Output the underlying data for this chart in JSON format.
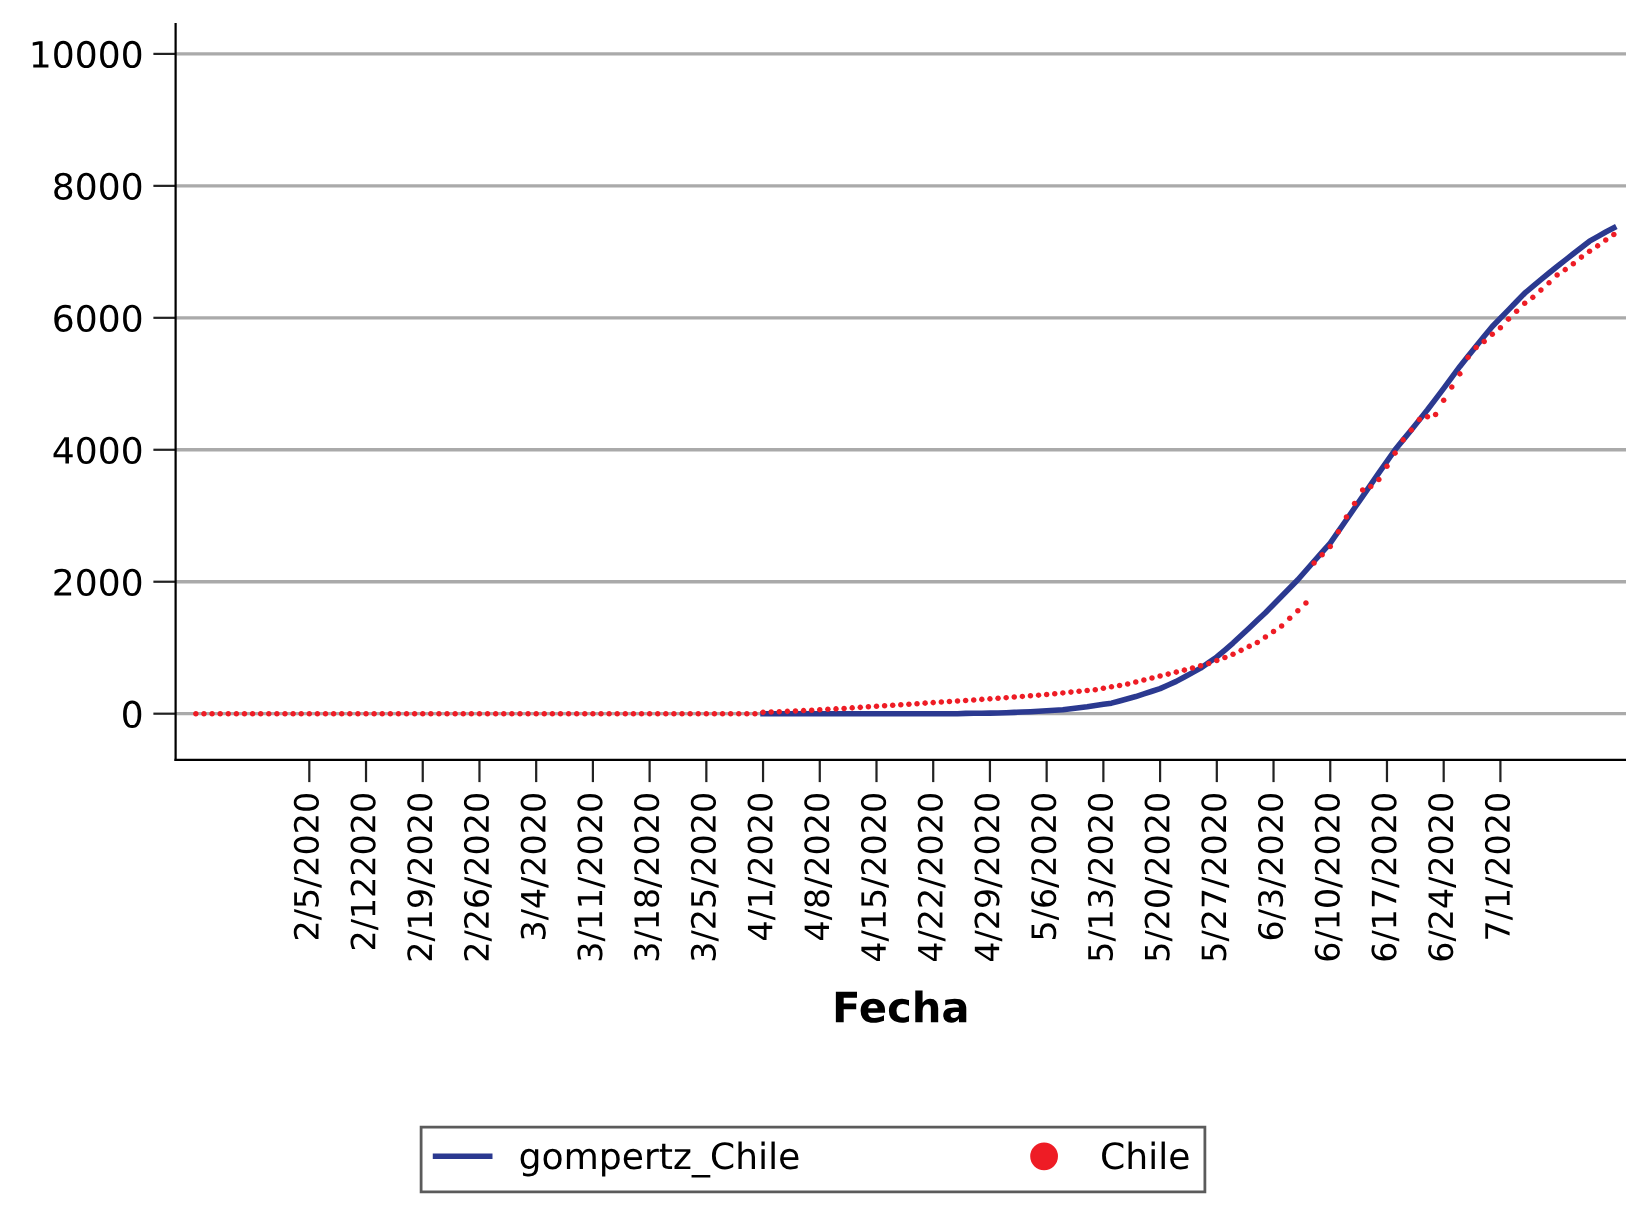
{
  "chart_data": {
    "type": "line",
    "xlabel": "Fecha",
    "categories": [
      null,
      null,
      null,
      null,
      null,
      null,
      null,
      null,
      null,
      null,
      null,
      null,
      null,
      null,
      "2/5/2020",
      null,
      null,
      null,
      null,
      null,
      null,
      "2/122020",
      null,
      null,
      null,
      null,
      null,
      null,
      "2/19/2020",
      null,
      null,
      null,
      null,
      null,
      null,
      "2/26/2020",
      null,
      null,
      null,
      null,
      null,
      null,
      "3/4/2020",
      null,
      null,
      null,
      null,
      null,
      null,
      "3/11/2020",
      null,
      null,
      null,
      null,
      null,
      null,
      "3/18/2020",
      null,
      null,
      null,
      null,
      null,
      null,
      "3/25/2020",
      null,
      null,
      null,
      null,
      null,
      null,
      "4/1/2020",
      null,
      null,
      null,
      null,
      null,
      null,
      "4/8/2020",
      null,
      null,
      null,
      null,
      null,
      null,
      "4/15/2020",
      null,
      null,
      null,
      null,
      null,
      null,
      "4/22/2020",
      null,
      null,
      null,
      null,
      null,
      null,
      "4/29/2020",
      null,
      null,
      null,
      null,
      null,
      null,
      "5/6/2020",
      null,
      null,
      null,
      null,
      null,
      null,
      "5/13/2020",
      null,
      null,
      null,
      null,
      null,
      null,
      "5/20/2020",
      null,
      null,
      null,
      null,
      null,
      null,
      "5/27/2020",
      null,
      null,
      null,
      null,
      null,
      null,
      "6/3/2020",
      null,
      null,
      null,
      null,
      null,
      null,
      "6/10/2020",
      null,
      null,
      null,
      null,
      null,
      null,
      "6/17/2020",
      null,
      null,
      null,
      null,
      null,
      null,
      "6/24/2020",
      null,
      null,
      null,
      null,
      null,
      null,
      "7/1/2020",
      null,
      null,
      null,
      null,
      null,
      null,
      null,
      null,
      null,
      null,
      null,
      null,
      null,
      null,
      null
    ],
    "series": [
      {
        "name": "gompertz_Chile",
        "color": "#2b3990",
        "marker": "none",
        "line_style": "solid",
        "values": [
          null,
          null,
          null,
          null,
          null,
          null,
          null,
          null,
          null,
          null,
          null,
          null,
          null,
          null,
          null,
          null,
          null,
          null,
          null,
          null,
          null,
          null,
          null,
          null,
          null,
          null,
          null,
          null,
          null,
          null,
          null,
          null,
          null,
          null,
          null,
          null,
          null,
          null,
          null,
          null,
          null,
          null,
          null,
          null,
          null,
          null,
          null,
          null,
          null,
          null,
          null,
          null,
          null,
          null,
          null,
          null,
          null,
          null,
          null,
          null,
          null,
          null,
          null,
          null,
          null,
          null,
          null,
          null,
          null,
          null,
          0,
          0,
          0,
          0,
          0,
          0,
          0,
          0,
          0,
          0,
          0,
          0,
          0,
          0,
          0,
          0,
          0,
          0,
          0,
          0,
          0,
          0,
          0,
          0,
          0,
          5,
          6,
          8,
          9,
          10,
          15,
          20,
          25,
          30,
          37,
          45,
          52,
          60,
          75,
          90,
          105,
          123,
          142,
          160,
          193,
          227,
          260,
          300,
          340,
          380,
          435,
          490,
          557,
          623,
          690,
          775,
          860,
          965,
          1070,
          1185,
          1300,
          1415,
          1530,
          1655,
          1780,
          1905,
          2030,
          2170,
          2310,
          2448,
          2586,
          2763,
          2940,
          3117,
          3293,
          3472,
          3650,
          3825,
          4000,
          4150,
          4300,
          4453,
          4606,
          4768,
          4930,
          5097,
          5263,
          5417,
          5570,
          5720,
          5869,
          5995,
          6120,
          6247,
          6373,
          6477,
          6580,
          6679,
          6778,
          6874,
          6970,
          7066,
          7161,
          7231,
          7300,
          7364,
          null
        ]
      },
      {
        "name": "Chile",
        "type": "scatter",
        "color": "#ee1c25",
        "marker": "circle",
        "values": [
          0,
          0,
          0,
          0,
          0,
          0,
          0,
          0,
          0,
          0,
          0,
          0,
          0,
          0,
          0,
          0,
          0,
          0,
          0,
          0,
          0,
          0,
          0,
          0,
          0,
          0,
          0,
          0,
          0,
          0,
          0,
          0,
          0,
          0,
          0,
          0,
          0,
          0,
          0,
          0,
          0,
          0,
          0,
          0,
          0,
          0,
          0,
          0,
          0,
          0,
          0,
          0,
          0,
          0,
          0,
          0,
          0,
          0,
          0,
          0,
          0,
          0,
          0,
          0,
          0,
          0,
          0,
          0,
          0,
          0,
          20,
          25,
          30,
          35,
          40,
          47,
          53,
          60,
          67,
          73,
          80,
          88,
          96,
          104,
          112,
          120,
          128,
          136,
          144,
          152,
          160,
          168,
          176,
          184,
          192,
          200,
          208,
          217,
          225,
          233,
          243,
          252,
          262,
          271,
          281,
          290,
          302,
          315,
          327,
          340,
          352,
          364,
          385,
          407,
          428,
          450,
          480,
          510,
          540,
          570,
          600,
          630,
          660,
          693,
          727,
          760,
          807,
          853,
          900,
          960,
          1020,
          1080,
          1163,
          1247,
          1330,
          1446,
          1561,
          1677,
          2283,
          2409,
          2535,
          2758,
          2980,
          3185,
          3390,
          3444,
          3550,
          3750,
          3949,
          4150,
          4300,
          4460,
          4500,
          4535,
          4750,
          4950,
          5150,
          5400,
          5550,
          5640,
          5750,
          5850,
          5980,
          6100,
          6220,
          6310,
          6420,
          6530,
          6650,
          6730,
          6820,
          6920,
          7010,
          7090,
          7180,
          7263,
          null
        ]
      }
    ],
    "ylim": [
      -700,
      10450
    ],
    "yticks": [
      0,
      2000,
      4000,
      6000,
      8000,
      10000
    ],
    "grid": "y",
    "legend": "bottom"
  }
}
